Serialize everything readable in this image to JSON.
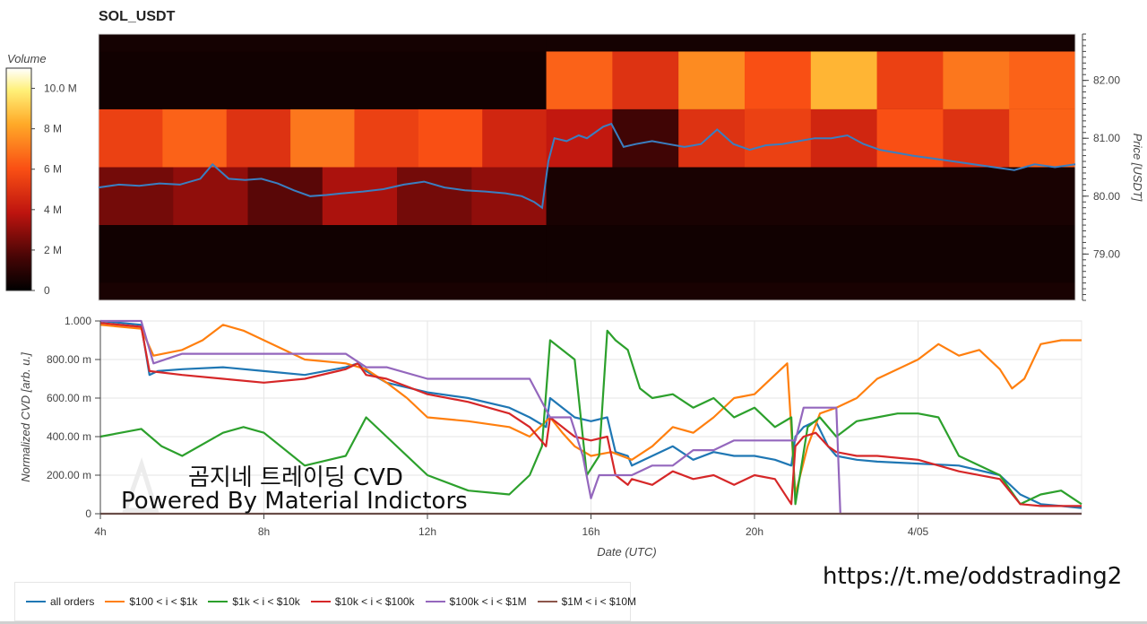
{
  "chart_data": [
    {
      "type": "heatmap",
      "title": "SOL_USDT",
      "ylabel": "Price [USDT]",
      "ylim": [
        78.2,
        82.8
      ],
      "y_ticks": [
        "79.00",
        "80.00",
        "81.00",
        "82.00"
      ],
      "colorbar": {
        "title": "Volume",
        "ticks": [
          "0",
          "2 M",
          "4 M",
          "6 M",
          "8 M",
          "10.0 M"
        ],
        "range": [
          0,
          11000000
        ]
      },
      "price_bands": [
        {
          "low": 81.5,
          "high": 82.5,
          "left": [
            0.4
          ],
          "right": [
            6.5,
            5.0,
            7.5,
            6.0,
            8.5,
            5.5,
            7.0,
            6.5
          ]
        },
        {
          "low": 80.5,
          "high": 81.5,
          "left": [
            5.5,
            6.5,
            5.0,
            7.0,
            5.5,
            6.0,
            4.5
          ],
          "right": [
            4.0,
            1.5,
            5.0,
            5.5,
            4.5,
            6.0,
            5.0,
            6.5
          ]
        },
        {
          "low": 79.5,
          "high": 80.5,
          "left": [
            2.5,
            3.0,
            2.0,
            3.5,
            2.5,
            3.0
          ],
          "right": [
            0.6
          ]
        },
        {
          "low": 78.5,
          "high": 79.5,
          "left": [
            0.4
          ],
          "right": [
            0.4
          ]
        },
        {
          "low": 78.2,
          "high": 78.5,
          "left": [
            0.6
          ],
          "right": [
            0.6
          ]
        },
        {
          "low": 82.5,
          "high": 82.8,
          "left": [
            0.5
          ],
          "right": [
            0.5
          ]
        }
      ],
      "split_hour": 15.0,
      "price_series": {
        "name": "price",
        "x_hours": [
          4.0,
          4.5,
          5.0,
          5.5,
          6.0,
          6.5,
          6.8,
          7.2,
          7.6,
          8.0,
          8.4,
          8.8,
          9.2,
          9.6,
          10.0,
          10.5,
          11.0,
          11.5,
          12.0,
          12.5,
          13.0,
          13.5,
          14.0,
          14.4,
          14.7,
          14.9,
          15.05,
          15.2,
          15.5,
          15.8,
          16.0,
          16.4,
          16.6,
          16.9,
          17.2,
          17.6,
          18.0,
          18.4,
          18.8,
          19.2,
          19.6,
          20.0,
          20.4,
          20.8,
          21.2,
          21.6,
          22.0,
          22.4,
          22.8,
          23.2,
          23.6,
          24.0,
          24.5,
          25.0,
          25.5,
          26.0,
          26.5,
          27.0,
          27.5,
          28.0
        ],
        "y": [
          80.15,
          80.2,
          80.18,
          80.22,
          80.2,
          80.3,
          80.55,
          80.3,
          80.28,
          80.3,
          80.22,
          80.1,
          80.0,
          80.02,
          80.05,
          80.08,
          80.12,
          80.2,
          80.25,
          80.15,
          80.1,
          80.08,
          80.05,
          80.0,
          79.9,
          79.8,
          80.6,
          81.0,
          80.95,
          81.05,
          81.0,
          81.2,
          81.25,
          80.85,
          80.9,
          80.95,
          80.9,
          80.85,
          80.9,
          81.15,
          80.9,
          80.8,
          80.88,
          80.9,
          80.95,
          81.0,
          81.0,
          81.05,
          80.9,
          80.8,
          80.75,
          80.7,
          80.65,
          80.6,
          80.55,
          80.5,
          80.45,
          80.55,
          80.5,
          80.55
        ]
      }
    },
    {
      "type": "line",
      "title": "",
      "xlabel": "Date (UTC)",
      "ylabel": "Normalized CVD [arb. u.]",
      "ylim": [
        0,
        1.0
      ],
      "xlim_hours": [
        4,
        28
      ],
      "x_ticks": [
        {
          "hour": 4,
          "label": "4h"
        },
        {
          "hour": 8,
          "label": "8h"
        },
        {
          "hour": 12,
          "label": "12h"
        },
        {
          "hour": 16,
          "label": "16h"
        },
        {
          "hour": 20,
          "label": "20h"
        },
        {
          "hour": 24,
          "label": "4/05"
        }
      ],
      "y_ticks": [
        {
          "value": 0,
          "label": "0"
        },
        {
          "value": 0.2,
          "label": "200.00 m"
        },
        {
          "value": 0.4,
          "label": "400.00 m"
        },
        {
          "value": 0.6,
          "label": "600.00 m"
        },
        {
          "value": 0.8,
          "label": "800.00 m"
        },
        {
          "value": 1.0,
          "label": "1.000"
        }
      ],
      "series": [
        {
          "name": "all orders",
          "color": "#1f77b4",
          "x": [
            4.0,
            5.0,
            5.2,
            5.4,
            6.0,
            7.0,
            8.0,
            9.0,
            10.0,
            10.3,
            10.5,
            11.0,
            12.0,
            13.0,
            14.0,
            14.5,
            14.9,
            15.0,
            15.3,
            15.6,
            16.0,
            16.4,
            16.6,
            16.9,
            17.0,
            17.5,
            18.0,
            18.5,
            19.0,
            19.5,
            20.0,
            20.5,
            20.9,
            21.0,
            21.2,
            21.5,
            21.8,
            22.0,
            22.5,
            23.0,
            24.0,
            25.0,
            26.0,
            26.5,
            27.0,
            27.5,
            28.0
          ],
          "y": [
            1.0,
            0.98,
            0.72,
            0.74,
            0.75,
            0.76,
            0.74,
            0.72,
            0.76,
            0.78,
            0.74,
            0.68,
            0.63,
            0.6,
            0.55,
            0.5,
            0.45,
            0.6,
            0.55,
            0.5,
            0.48,
            0.5,
            0.32,
            0.3,
            0.25,
            0.3,
            0.35,
            0.28,
            0.32,
            0.3,
            0.3,
            0.28,
            0.25,
            0.4,
            0.45,
            0.48,
            0.35,
            0.3,
            0.28,
            0.27,
            0.26,
            0.25,
            0.2,
            0.1,
            0.05,
            0.04,
            0.03
          ]
        },
        {
          "name": "$100 < i < $1k",
          "color": "#ff7f0e",
          "x": [
            4.0,
            5.0,
            5.3,
            6.0,
            6.5,
            7.0,
            7.5,
            8.0,
            9.0,
            10.0,
            10.5,
            11.0,
            11.5,
            12.0,
            13.0,
            14.0,
            14.5,
            15.0,
            15.3,
            15.6,
            16.0,
            16.5,
            17.0,
            17.5,
            18.0,
            18.5,
            19.0,
            19.5,
            20.0,
            20.5,
            20.8,
            21.0,
            21.3,
            21.6,
            22.0,
            22.5,
            23.0,
            24.0,
            24.5,
            25.0,
            25.5,
            26.0,
            26.3,
            26.6,
            27.0,
            27.5,
            28.0
          ],
          "y": [
            0.98,
            0.96,
            0.82,
            0.85,
            0.9,
            0.98,
            0.95,
            0.9,
            0.8,
            0.78,
            0.75,
            0.68,
            0.6,
            0.5,
            0.48,
            0.45,
            0.4,
            0.5,
            0.42,
            0.35,
            0.3,
            0.32,
            0.28,
            0.35,
            0.45,
            0.42,
            0.5,
            0.6,
            0.62,
            0.72,
            0.78,
            0.1,
            0.35,
            0.52,
            0.55,
            0.6,
            0.7,
            0.8,
            0.88,
            0.82,
            0.85,
            0.75,
            0.65,
            0.7,
            0.88,
            0.9,
            0.9
          ]
        },
        {
          "name": "$1k < i < $10k",
          "color": "#2ca02c",
          "x": [
            4.0,
            4.5,
            5.0,
            5.5,
            6.0,
            7.0,
            7.5,
            8.0,
            9.0,
            10.0,
            10.5,
            11.0,
            12.0,
            13.0,
            14.0,
            14.5,
            14.8,
            15.0,
            15.3,
            15.6,
            15.9,
            16.2,
            16.4,
            16.6,
            16.9,
            17.2,
            17.5,
            18.0,
            18.5,
            19.0,
            19.5,
            20.0,
            20.5,
            20.9,
            21.0,
            21.3,
            21.6,
            22.0,
            22.5,
            23.0,
            23.5,
            24.0,
            24.5,
            25.0,
            25.5,
            26.0,
            26.5,
            27.0,
            27.5,
            28.0
          ],
          "y": [
            0.4,
            0.42,
            0.44,
            0.35,
            0.3,
            0.42,
            0.45,
            0.42,
            0.25,
            0.3,
            0.5,
            0.4,
            0.2,
            0.12,
            0.1,
            0.2,
            0.35,
            0.9,
            0.85,
            0.8,
            0.2,
            0.3,
            0.95,
            0.9,
            0.85,
            0.65,
            0.6,
            0.62,
            0.55,
            0.6,
            0.5,
            0.55,
            0.45,
            0.5,
            0.05,
            0.45,
            0.5,
            0.4,
            0.48,
            0.5,
            0.52,
            0.52,
            0.5,
            0.3,
            0.25,
            0.2,
            0.05,
            0.1,
            0.12,
            0.05
          ]
        },
        {
          "name": "$10k < i < $100k",
          "color": "#d62728",
          "x": [
            4.0,
            5.0,
            5.2,
            6.0,
            7.0,
            8.0,
            9.0,
            10.0,
            10.3,
            10.5,
            11.0,
            12.0,
            13.0,
            14.0,
            14.5,
            14.9,
            15.0,
            15.3,
            15.6,
            16.0,
            16.4,
            16.6,
            16.9,
            17.0,
            17.5,
            18.0,
            18.5,
            19.0,
            19.5,
            20.0,
            20.5,
            20.9,
            21.0,
            21.2,
            21.5,
            21.8,
            22.0,
            22.5,
            23.0,
            24.0,
            25.0,
            26.0,
            26.5,
            27.0,
            27.5,
            28.0
          ],
          "y": [
            0.99,
            0.97,
            0.74,
            0.72,
            0.7,
            0.68,
            0.7,
            0.75,
            0.78,
            0.72,
            0.7,
            0.62,
            0.58,
            0.52,
            0.45,
            0.35,
            0.5,
            0.45,
            0.4,
            0.38,
            0.4,
            0.2,
            0.15,
            0.18,
            0.15,
            0.22,
            0.18,
            0.2,
            0.15,
            0.2,
            0.18,
            0.05,
            0.35,
            0.4,
            0.42,
            0.35,
            0.32,
            0.3,
            0.3,
            0.28,
            0.22,
            0.18,
            0.05,
            0.04,
            0.04,
            0.04
          ]
        },
        {
          "name": "$100k < i < $1M",
          "color": "#9467bd",
          "x": [
            4.0,
            5.0,
            5.3,
            6.0,
            6.5,
            8.0,
            9.0,
            10.0,
            10.5,
            11.0,
            12.0,
            13.0,
            14.0,
            14.5,
            15.0,
            15.5,
            15.8,
            16.0,
            16.2,
            17.0,
            17.5,
            18.0,
            18.5,
            19.0,
            19.5,
            20.0,
            20.5,
            21.0,
            21.2,
            21.5,
            22.0,
            22.1,
            23.0,
            24.0,
            25.0,
            26.0,
            27.0,
            28.0
          ],
          "y": [
            1.0,
            1.0,
            0.78,
            0.83,
            0.83,
            0.83,
            0.83,
            0.83,
            0.76,
            0.76,
            0.7,
            0.7,
            0.7,
            0.7,
            0.5,
            0.5,
            0.3,
            0.08,
            0.2,
            0.2,
            0.25,
            0.25,
            0.33,
            0.33,
            0.38,
            0.38,
            0.38,
            0.38,
            0.55,
            0.55,
            0.55,
            0.0,
            0.0,
            0.0,
            0.0,
            0.0,
            0.0,
            0.0
          ]
        },
        {
          "name": "$1M < i < $10M",
          "color": "#8c564b",
          "x": [
            4.0,
            28.0
          ],
          "y": [
            0.0,
            0.0
          ]
        }
      ]
    }
  ],
  "overlay_text": {
    "line1": "곰지네 트레이딩 CVD",
    "line2": "Powered By Material Indictors",
    "link": "https://t.me/oddstrading2"
  }
}
